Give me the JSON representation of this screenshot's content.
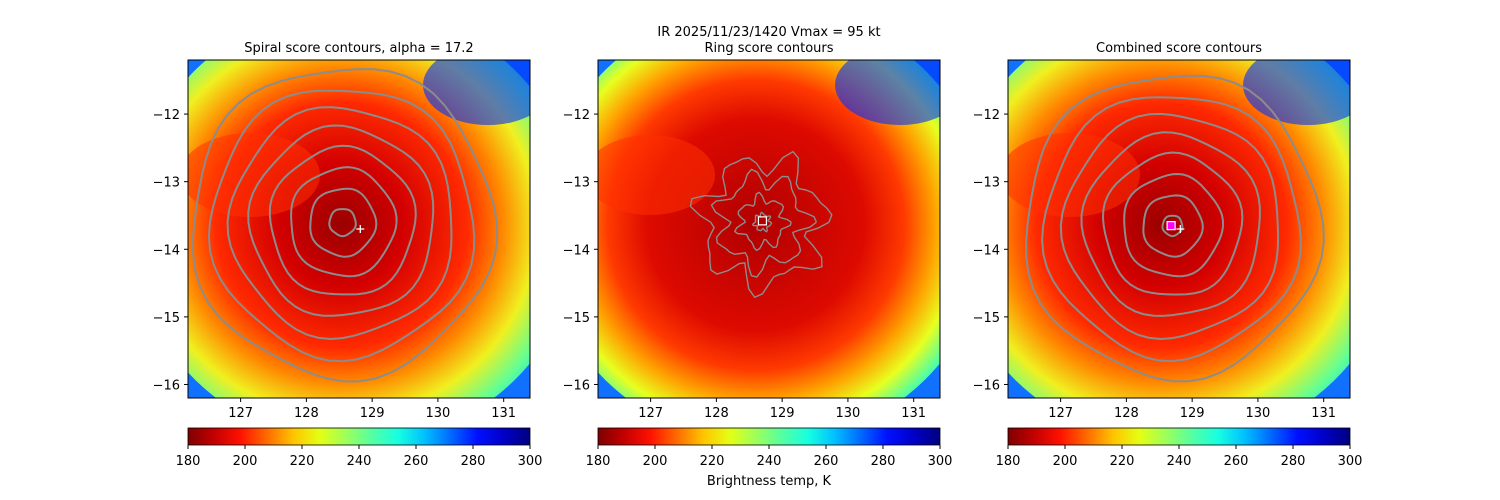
{
  "suptitle_line1": "IR  2025/11/23/1420    Vmax = 95 kt",
  "colorbar_label": "Brightness temp, K",
  "colorbar_ticks": [
    180,
    200,
    220,
    240,
    260,
    280,
    300
  ],
  "colormap": [
    "#7f0000",
    "#c40000",
    "#ff1200",
    "#ff6a00",
    "#ffc400",
    "#e4ff13",
    "#9dff5a",
    "#55ffa2",
    "#16ffe1",
    "#00c0ff",
    "#0068ff",
    "#0010ff",
    "#0000c8",
    "#00007f"
  ],
  "chart_data": [
    {
      "type": "heatmap",
      "title": "Spiral score contours, alpha = 17.2",
      "xlim": [
        126.2,
        131.4
      ],
      "ylim": [
        -16.2,
        -11.2
      ],
      "xticks": [
        127,
        128,
        129,
        130,
        131
      ],
      "yticks": [
        -12,
        -13,
        -14,
        -15,
        -16
      ],
      "color_range": [
        180,
        300
      ],
      "contour_center": [
        128.55,
        -13.6
      ],
      "contour_radii_deg": [
        0.2,
        0.5,
        0.8,
        1.1,
        1.4,
        1.7,
        2.0,
        2.3
      ],
      "markers": [
        {
          "shape": "plus",
          "lon": 128.82,
          "lat": -13.7,
          "color": "#ffffff"
        }
      ]
    },
    {
      "type": "heatmap",
      "title": "Ring score contours",
      "xlim": [
        126.2,
        131.4
      ],
      "ylim": [
        -16.2,
        -11.2
      ],
      "xticks": [
        127,
        128,
        129,
        130,
        131
      ],
      "yticks": [
        -12,
        -13,
        -14,
        -15,
        -16
      ],
      "color_range": [
        180,
        300
      ],
      "contour_center": [
        128.7,
        -13.6
      ],
      "contour_radii_deg": [
        0.12,
        0.35,
        0.65,
        0.9
      ],
      "markers": [
        {
          "shape": "square",
          "lon": 128.7,
          "lat": -13.58,
          "color": "#ffffff"
        }
      ]
    },
    {
      "type": "heatmap",
      "title": "Combined score contours",
      "xlim": [
        126.2,
        131.4
      ],
      "ylim": [
        -16.2,
        -11.2
      ],
      "xticks": [
        127,
        128,
        129,
        130,
        131
      ],
      "yticks": [
        -12,
        -13,
        -14,
        -15,
        -16
      ],
      "color_range": [
        180,
        300
      ],
      "contour_center": [
        128.7,
        -13.65
      ],
      "contour_radii_deg": [
        0.15,
        0.45,
        0.75,
        1.05,
        1.35,
        1.65,
        1.95,
        2.25
      ],
      "markers": [
        {
          "shape": "square",
          "lon": 128.68,
          "lat": -13.65,
          "color": "#ff00ff"
        },
        {
          "shape": "plus",
          "lon": 128.82,
          "lat": -13.7,
          "color": "#ffffff"
        }
      ]
    }
  ]
}
